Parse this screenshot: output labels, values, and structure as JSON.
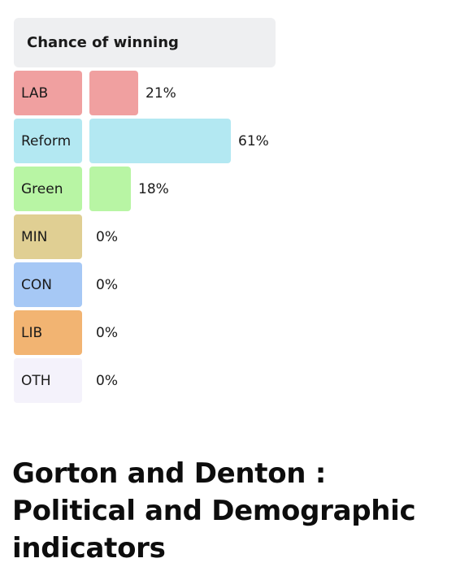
{
  "panel": {
    "title": "Chance of winning"
  },
  "page": {
    "heading": "Gorton and Denton : Political and Demographic indicators"
  },
  "chart_data": {
    "type": "bar",
    "orientation": "horizontal",
    "title": "Chance of winning",
    "categories": [
      "LAB",
      "Reform",
      "Green",
      "MIN",
      "CON",
      "LIB",
      "OTH"
    ],
    "values": [
      21,
      61,
      18,
      0,
      0,
      0,
      0
    ],
    "value_labels": [
      "21%",
      "61%",
      "18%",
      "0%",
      "0%",
      "0%",
      "0%"
    ],
    "colors": [
      "#f0a0a0",
      "#b3e8f2",
      "#b8f5a4",
      "#e0cf93",
      "#a6c8f5",
      "#f2b472",
      "#f4f2fb"
    ],
    "xlim": [
      0,
      61
    ],
    "grid": false,
    "legend": "none"
  }
}
